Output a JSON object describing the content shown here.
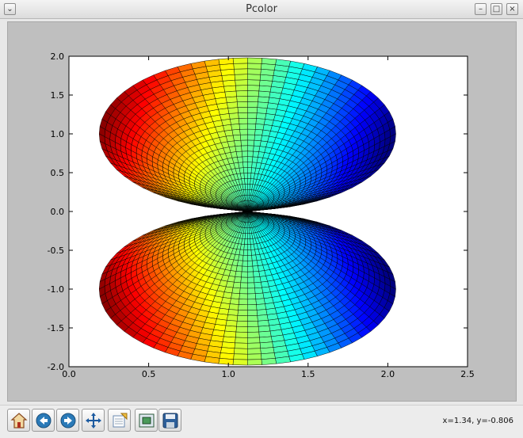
{
  "window": {
    "title": "Pcolor"
  },
  "status": {
    "coords": "x=1.34, y=-0.806"
  },
  "toolbar": {
    "buttons": [
      {
        "name": "home",
        "icon": "home-icon"
      },
      {
        "name": "back",
        "icon": "back-arrow-icon"
      },
      {
        "name": "forward",
        "icon": "forward-arrow-icon"
      },
      {
        "name": "pan",
        "icon": "pan-move-icon"
      },
      {
        "name": "zoom",
        "icon": "zoom-rect-icon"
      },
      {
        "name": "subplots",
        "icon": "subplots-config-icon"
      },
      {
        "name": "save",
        "icon": "save-disk-icon"
      }
    ]
  },
  "chart_data": {
    "type": "heatmap",
    "title": "",
    "xlabel": "",
    "ylabel": "",
    "xlim": [
      0.0,
      2.5
    ],
    "ylim": [
      -2.0,
      2.0
    ],
    "xticks": [
      "0.0",
      "0.5",
      "1.0",
      "1.5",
      "2.0",
      "2.5"
    ],
    "yticks": [
      "2.0",
      "1.5",
      "1.0",
      "0.5",
      "0.0",
      "-0.5",
      "-1.0",
      "-1.5",
      "-2.0"
    ],
    "colormap": "jet",
    "grid": false,
    "edgecolor": "#000000",
    "regions": [
      {
        "shape": "ellipse",
        "cx": 1.12,
        "cy": 1.0,
        "rx": 0.93,
        "ry": 0.98
      },
      {
        "shape": "ellipse",
        "cx": 1.12,
        "cy": -1.0,
        "rx": 0.93,
        "ry": 0.98
      }
    ]
  }
}
